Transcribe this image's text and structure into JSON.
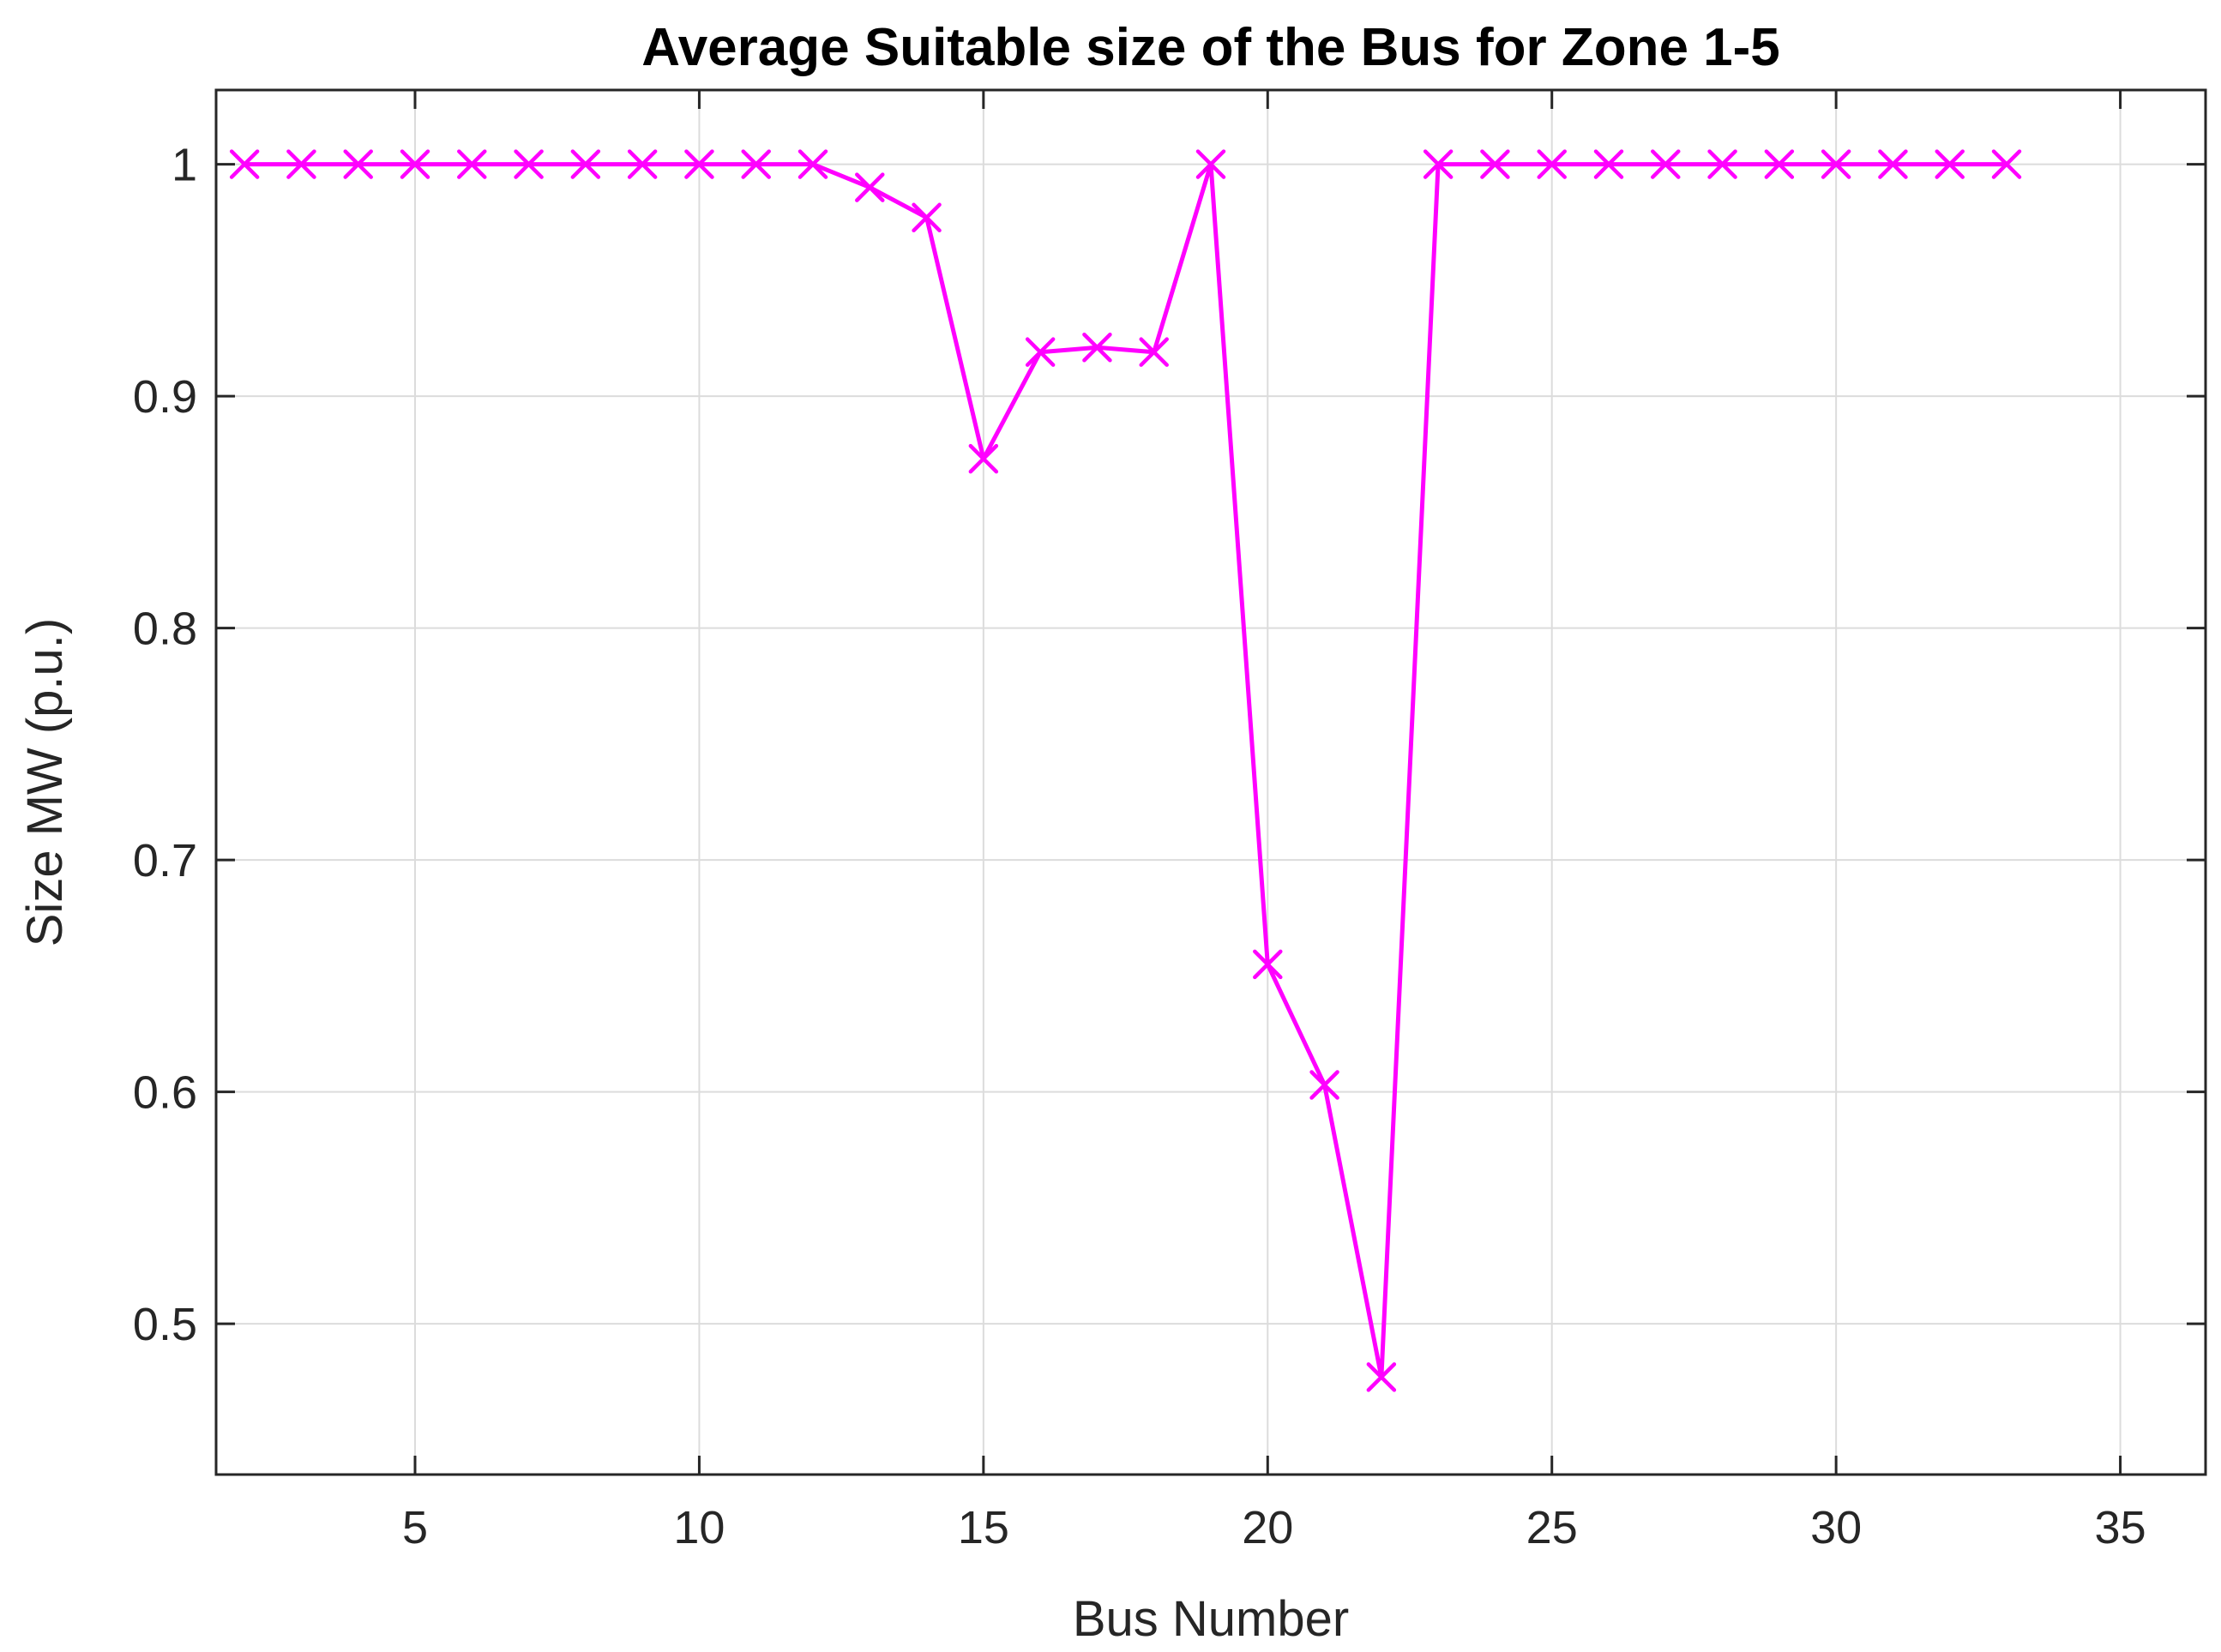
{
  "chart_data": {
    "type": "line",
    "title": "Average Suitable size of the Bus for Zone 1-5",
    "xlabel": "Bus Number",
    "ylabel": "Size MW (p.u.)",
    "xlim": [
      1.5,
      36.5
    ],
    "ylim": [
      0.435,
      1.032
    ],
    "xticks": [
      5,
      10,
      15,
      20,
      25,
      30,
      35
    ],
    "xtick_labels": [
      "5",
      "10",
      "15",
      "20",
      "25",
      "30",
      "35"
    ],
    "yticks": [
      0.5,
      0.6,
      0.7,
      0.8,
      0.9,
      1.0
    ],
    "ytick_labels": [
      "0.5",
      "0.6",
      "0.7",
      "0.8",
      "0.9",
      "1"
    ],
    "grid": true,
    "series": [
      {
        "color": "#ff00ff",
        "marker": "x",
        "x": [
          2,
          3,
          4,
          5,
          6,
          7,
          8,
          9,
          10,
          11,
          12,
          13,
          14,
          15,
          16,
          17,
          18,
          19,
          20,
          21,
          22,
          23,
          24,
          25,
          26,
          27,
          28,
          29,
          30,
          31,
          32,
          33
        ],
        "y": [
          1.0,
          1.0,
          1.0,
          1.0,
          1.0,
          1.0,
          1.0,
          1.0,
          1.0,
          1.0,
          1.0,
          0.99,
          0.977,
          0.873,
          0.919,
          0.921,
          0.919,
          1.0,
          0.655,
          0.603,
          0.477,
          1.0,
          1.0,
          1.0,
          1.0,
          1.0,
          1.0,
          1.0,
          1.0,
          1.0,
          1.0,
          1.0
        ]
      }
    ]
  }
}
